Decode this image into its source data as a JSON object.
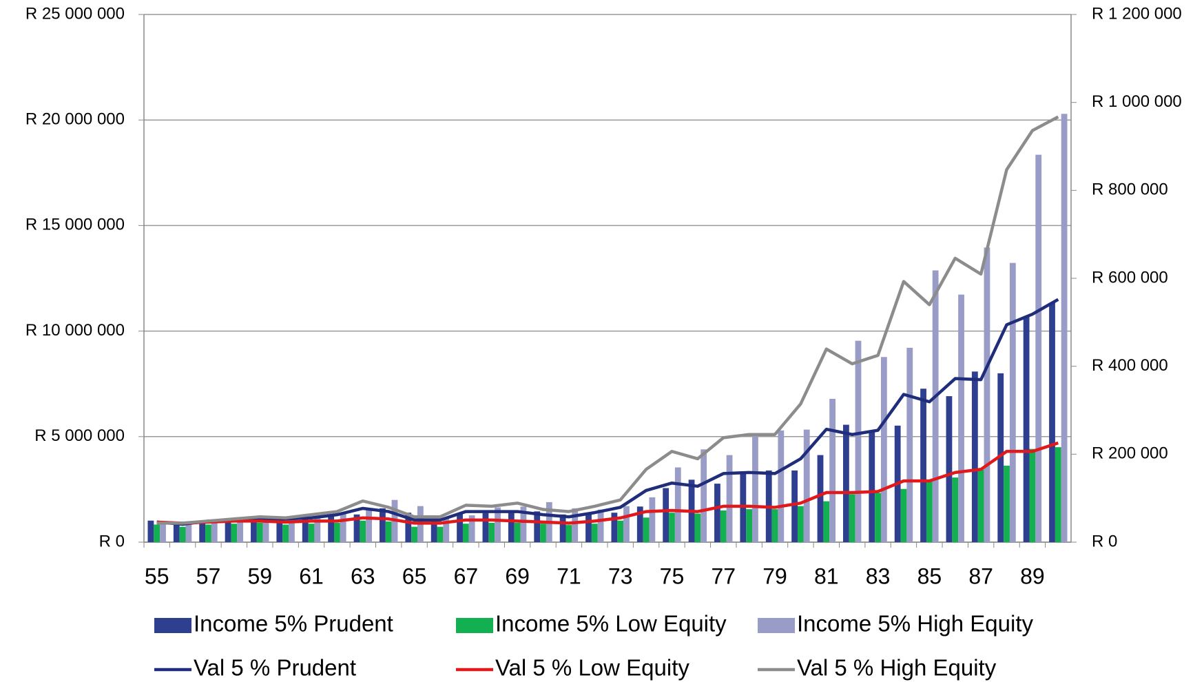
{
  "chart_data": {
    "type": "bar",
    "categories": [
      "55",
      null,
      "57",
      null,
      "59",
      null,
      "61",
      null,
      "63",
      null,
      "65",
      null,
      "67",
      null,
      "69",
      null,
      "71",
      null,
      "73",
      null,
      "75",
      null,
      "77",
      null,
      "79",
      null,
      "81",
      null,
      "83",
      null,
      "85",
      null,
      "87",
      null,
      "89",
      null
    ],
    "ylim": [
      0,
      25000000
    ],
    "yticks": [
      {
        "value": 0,
        "label": "R 0"
      },
      {
        "value": 5000000,
        "label": "R 5 000 000"
      },
      {
        "value": 10000000,
        "label": "R 10 000 000"
      },
      {
        "value": 15000000,
        "label": "R 15 000 000"
      },
      {
        "value": 20000000,
        "label": "R 20 000 000"
      },
      {
        "value": 25000000,
        "label": "R 25 000 000"
      }
    ],
    "y2lim": [
      0,
      1200000
    ],
    "y2ticks": [
      {
        "value": 0,
        "label": "R 0"
      },
      {
        "value": 200000,
        "label": "R 200 000"
      },
      {
        "value": 400000,
        "label": "R 400 000"
      },
      {
        "value": 600000,
        "label": "R 600 000"
      },
      {
        "value": 800000,
        "label": "R 800 000"
      },
      {
        "value": 1000000,
        "label": "R 1 000 000"
      },
      {
        "value": 1200000,
        "label": "R 1 200 000"
      }
    ],
    "grid": true,
    "series": [
      {
        "name": "Income 5% Prudent",
        "type": "bar",
        "axis": "y2",
        "color": "#2e3f8f",
        "values": [
          49000,
          40000,
          46000,
          49000,
          51000,
          49000,
          56000,
          61000,
          63000,
          77000,
          67000,
          47000,
          65000,
          68000,
          72000,
          70000,
          63000,
          65000,
          67000,
          81000,
          123000,
          142000,
          133000,
          161000,
          163000,
          163000,
          198000,
          267000,
          251000,
          265000,
          349000,
          332000,
          388000,
          384000,
          514000,
          544000
        ]
      },
      {
        "name": "Income 5% Low Equity",
        "type": "bar",
        "axis": "y2",
        "color": "#12b050",
        "values": [
          40000,
          35000,
          40000,
          42000,
          44000,
          40000,
          42000,
          44000,
          49000,
          47000,
          35000,
          35000,
          42000,
          44000,
          44000,
          42000,
          39000,
          42000,
          49000,
          56000,
          67000,
          65000,
          72000,
          75000,
          75000,
          82000,
          93000,
          109000,
          112000,
          121000,
          142000,
          147000,
          165000,
          174000,
          212000,
          216000
        ]
      },
      {
        "name": "Income 5% High Equity",
        "type": "bar",
        "axis": "y2",
        "color": "#9a9cc8",
        "values": [
          42000,
          42000,
          46000,
          49000,
          54000,
          53000,
          58000,
          65000,
          77000,
          96000,
          82000,
          54000,
          61000,
          79000,
          81000,
          91000,
          77000,
          74000,
          82000,
          102000,
          170000,
          211000,
          198000,
          242000,
          254000,
          256000,
          326000,
          458000,
          421000,
          442000,
          618000,
          563000,
          670000,
          635000,
          881000,
          974000
        ]
      },
      {
        "name": "Val 5 % Prudent",
        "type": "line",
        "color": "#1f2d7a",
        "values": [
          950000,
          850000,
          1000000,
          1050000,
          1100000,
          1100000,
          1150000,
          1300000,
          1600000,
          1450000,
          1050000,
          1050000,
          1450000,
          1450000,
          1450000,
          1300000,
          1200000,
          1400000,
          1650000,
          2450000,
          2800000,
          2650000,
          3250000,
          3300000,
          3250000,
          3950000,
          5350000,
          5100000,
          5300000,
          7000000,
          6650000,
          7750000,
          7700000,
          10300000,
          10800000,
          11500000
        ]
      },
      {
        "name": "Val 5 % Low Equity",
        "type": "line",
        "color": "#e0191d",
        "values": [
          950000,
          900000,
          950000,
          1000000,
          1000000,
          950000,
          1000000,
          1000000,
          1150000,
          1100000,
          900000,
          900000,
          1050000,
          1050000,
          1000000,
          950000,
          900000,
          1000000,
          1150000,
          1450000,
          1500000,
          1450000,
          1700000,
          1700000,
          1650000,
          1850000,
          2350000,
          2350000,
          2400000,
          2900000,
          2900000,
          3300000,
          3450000,
          4300000,
          4300000,
          4700000
        ]
      },
      {
        "name": "Val 5 % High Equity",
        "type": "line",
        "color": "#8c8c8c",
        "values": [
          900000,
          900000,
          1000000,
          1100000,
          1200000,
          1150000,
          1300000,
          1450000,
          1950000,
          1650000,
          1200000,
          1200000,
          1750000,
          1700000,
          1850000,
          1550000,
          1450000,
          1700000,
          2000000,
          3450000,
          4300000,
          3950000,
          4950000,
          5100000,
          5100000,
          6550000,
          9150000,
          8450000,
          8850000,
          12350000,
          11250000,
          13450000,
          12700000,
          17650000,
          19500000,
          20150000
        ]
      }
    ]
  }
}
